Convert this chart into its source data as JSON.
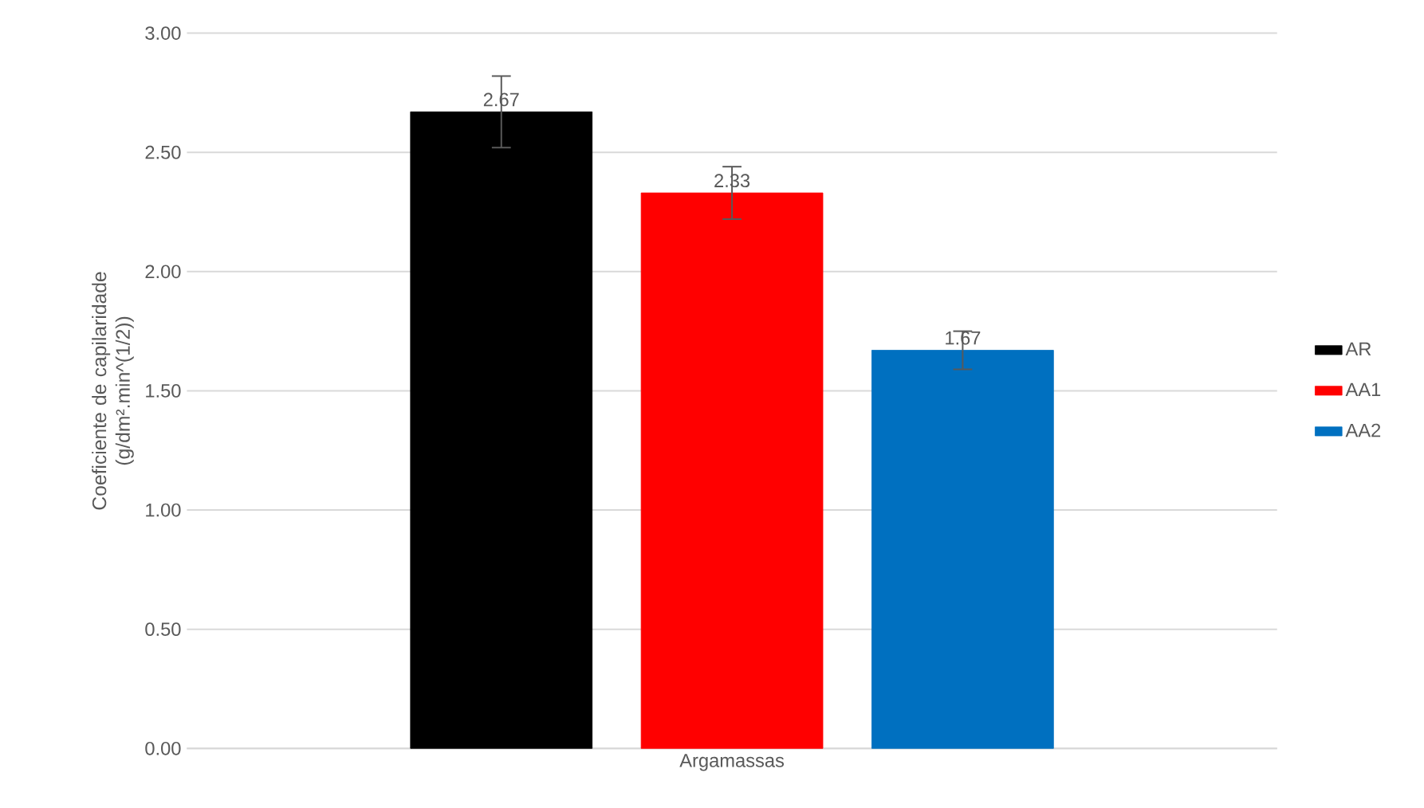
{
  "chart_data": {
    "type": "bar",
    "ylabel": "Coeficiente de capilaridade (g/dm².min^(1/2))",
    "categories": [
      "Argamassas"
    ],
    "series": [
      {
        "name": "AR",
        "color": "#000000",
        "values": [
          2.67
        ],
        "errors": [
          0.15
        ]
      },
      {
        "name": "AA1",
        "color": "#ff0000",
        "values": [
          2.33
        ],
        "errors": [
          0.11
        ]
      },
      {
        "name": "AA2",
        "color": "#0070c0",
        "values": [
          1.67
        ],
        "errors": [
          0.08
        ]
      }
    ],
    "ylim": [
      0,
      3
    ],
    "yticks": [
      {
        "value": 0,
        "label": "0.00"
      },
      {
        "value": 0.5,
        "label": "0.50"
      },
      {
        "value": 1,
        "label": "1.00"
      },
      {
        "value": 1.5,
        "label": "1.50"
      },
      {
        "value": 2,
        "label": "2.00"
      },
      {
        "value": 2.5,
        "label": "2.50"
      },
      {
        "value": 3,
        "label": "3.00"
      }
    ],
    "grid": "y",
    "legend": "right",
    "data_labels": true
  }
}
